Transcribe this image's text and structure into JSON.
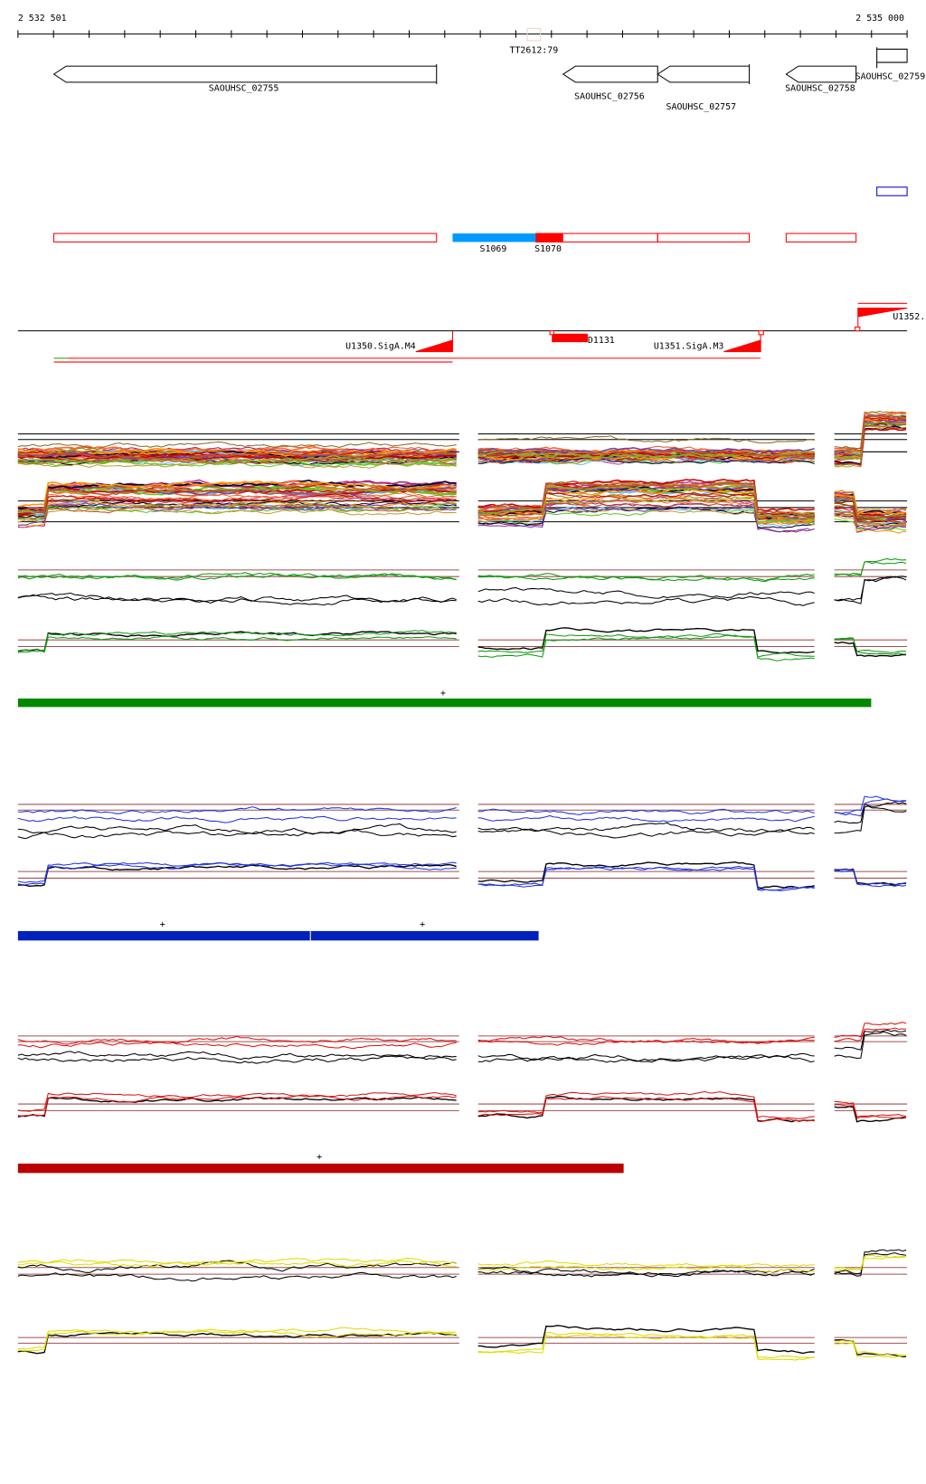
{
  "ruler": {
    "start_label": "2 532 501",
    "end_label": "2 535 000",
    "marker_label": "TT2612:79"
  },
  "genes": [
    {
      "label": "SAOUHSC_02755"
    },
    {
      "label": "SAOUHSC_02756"
    },
    {
      "label": "SAOUHSC_02757"
    },
    {
      "label": "SAOUHSC_02758"
    },
    {
      "label": "SAOUHSC_02759"
    }
  ],
  "segments": [
    {
      "label": "S1069",
      "color": "#0099ff"
    },
    {
      "label": "S1070",
      "color": "#ff0000"
    }
  ],
  "features": [
    {
      "label": "U1350.SigA.M4"
    },
    {
      "label": "D1131"
    },
    {
      "label": "U1351.SigA.M3"
    },
    {
      "label": "U1352."
    }
  ],
  "condition_bars": [
    {
      "color": "#008800",
      "marks": [
        "+"
      ]
    },
    {
      "color": "#0022bb",
      "marks": [
        "+",
        "+"
      ]
    },
    {
      "color": "#bb0000",
      "marks": [
        "+"
      ]
    }
  ],
  "track_colors": [
    "#e06030",
    "#8b8b20",
    "#cc3399",
    "#66bbee",
    "#55cc22",
    "#aa2277",
    "#993300",
    "#ff6633",
    "#000033",
    "#cc9933",
    "#ff9900",
    "#7744aa",
    "#cc0000",
    "#88aa22",
    "#bb5533"
  ],
  "series_colors": {
    "green": "#119911",
    "blue": "#2233dd",
    "red": "#dd1111",
    "yellow": "#dddd00",
    "reference": "#000000",
    "threshold": "#a05050"
  }
}
